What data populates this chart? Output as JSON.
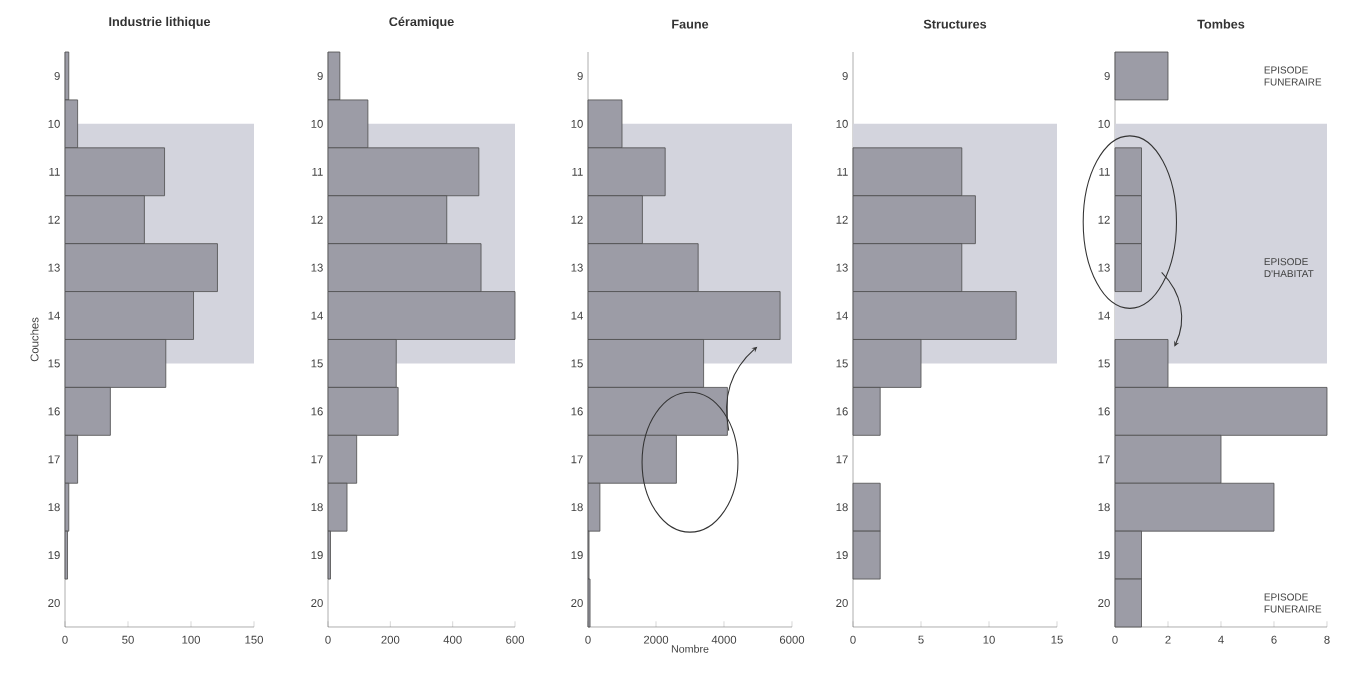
{
  "chart_data": [
    {
      "type": "bar",
      "orientation": "horizontal",
      "title": "Industrie lithique",
      "ylabel": "Couches",
      "categories": [
        "9",
        "10",
        "11",
        "12",
        "13",
        "14",
        "15",
        "16",
        "17",
        "18",
        "19",
        "20"
      ],
      "values": [
        3,
        10,
        79,
        63,
        121,
        102,
        80,
        36,
        10,
        3,
        2,
        null
      ],
      "color": "#9c9ca6",
      "xlim": [
        0,
        150
      ],
      "xticks": [
        0,
        50,
        100,
        150
      ],
      "bands": [
        {
          "axis": "y",
          "from": "10",
          "to": "15",
          "color": "#d3d4dd"
        }
      ]
    },
    {
      "type": "bar",
      "orientation": "horizontal",
      "title": "Céramique",
      "categories": [
        "9",
        "10",
        "11",
        "12",
        "13",
        "14",
        "15",
        "16",
        "17",
        "18",
        "19",
        "20"
      ],
      "values": [
        38,
        128,
        484,
        381,
        491,
        600,
        219,
        225,
        92,
        61,
        8,
        null
      ],
      "color": "#9c9ca6",
      "xlim": [
        0,
        600
      ],
      "xticks": [
        0,
        200,
        400,
        600
      ],
      "bands": [
        {
          "axis": "y",
          "from": "10",
          "to": "15",
          "color": "#d3d4dd"
        }
      ]
    },
    {
      "type": "bar",
      "orientation": "horizontal",
      "title": "Faune",
      "xlabel": "Nombre",
      "categories": [
        "9",
        "10",
        "11",
        "12",
        "13",
        "14",
        "15",
        "16",
        "17",
        "18",
        "19",
        "20"
      ],
      "values": [
        null,
        1000,
        2270,
        1600,
        3240,
        5650,
        3400,
        4100,
        2600,
        350,
        30,
        60
      ],
      "color": "#9c9ca6",
      "xlim": [
        0,
        6000
      ],
      "xticks": [
        0,
        2000,
        4000,
        6000
      ],
      "bands": [
        {
          "axis": "y",
          "from": "10",
          "to": "15",
          "color": "#d3d4dd"
        }
      ]
    },
    {
      "type": "bar",
      "orientation": "horizontal",
      "title": "Structures",
      "categories": [
        "9",
        "10",
        "11",
        "12",
        "13",
        "14",
        "15",
        "16",
        "17",
        "18",
        "19",
        "20"
      ],
      "values": [
        null,
        null,
        8,
        9,
        8,
        12,
        5,
        2,
        null,
        2,
        2,
        null
      ],
      "color": "#9c9ca6",
      "xlim": [
        0,
        15
      ],
      "xticks": [
        0,
        5,
        10,
        15
      ],
      "bands": [
        {
          "axis": "y",
          "from": "10",
          "to": "15",
          "color": "#d3d4dd"
        }
      ]
    },
    {
      "type": "bar",
      "orientation": "horizontal",
      "title": "Tombes",
      "categories": [
        "9",
        "10",
        "11",
        "12",
        "13",
        "14",
        "15",
        "16",
        "17",
        "18",
        "19",
        "20"
      ],
      "values": [
        2,
        null,
        1,
        1,
        1,
        null,
        2,
        8,
        4,
        6,
        1,
        1
      ],
      "color": "#9c9ca6",
      "xlim": [
        0,
        8
      ],
      "xticks": [
        0,
        2,
        4,
        6,
        8
      ],
      "bands": [
        {
          "axis": "y",
          "from": "10",
          "to": "15",
          "color": "#d3d4dd"
        }
      ],
      "annotations": [
        "EPISODE FUNERAIRE",
        "EPISODE D'HABITAT",
        "EPISODE FUNERAIRE"
      ]
    }
  ]
}
